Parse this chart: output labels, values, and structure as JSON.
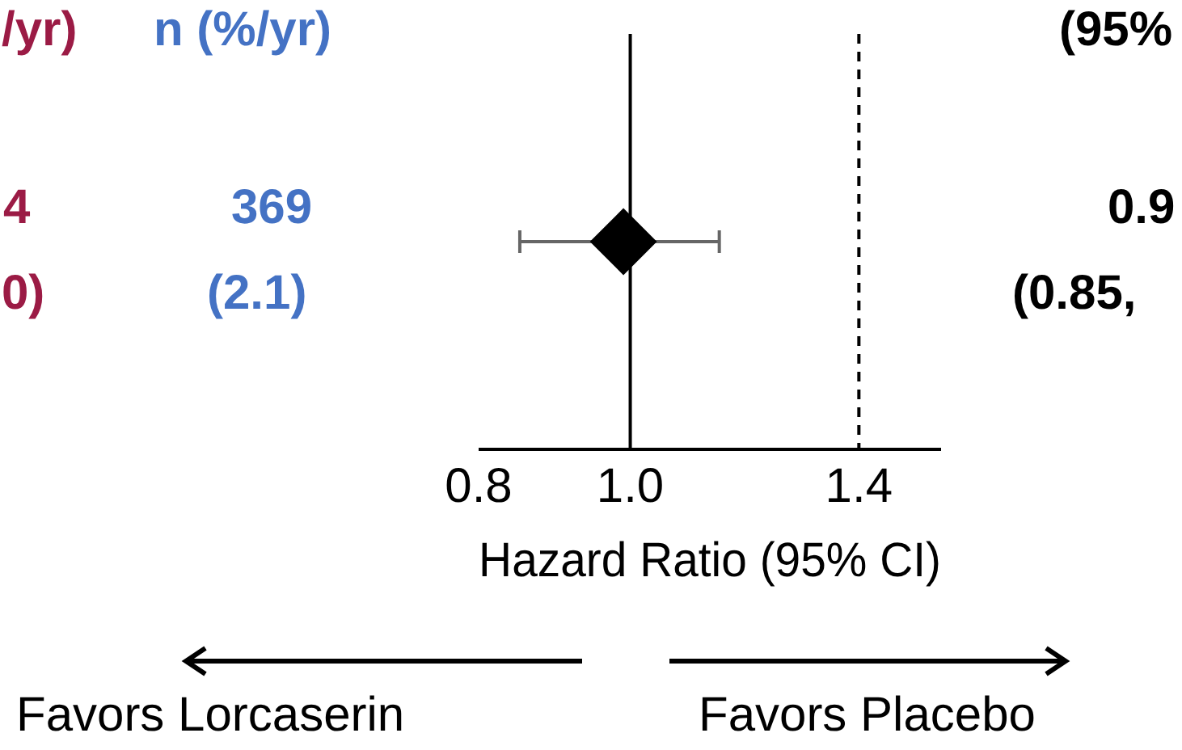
{
  "chart_data": {
    "type": "scatter",
    "orientation": "horizontal",
    "categories": [
      null
    ],
    "values": [
      0.99
    ],
    "errors": [
      [
        0.85,
        1.14
      ]
    ],
    "color": "#000000",
    "marker": "diamond",
    "xlim": [
      0.8,
      1.58
    ],
    "xticks": [
      0.8,
      {
        "value": 1,
        "label": "1.0"
      },
      1.4
    ],
    "log": "x",
    "grid": false,
    "legend": false,
    "tick_labels": "x",
    "xlabel": "Hazard Ratio (95% CI)",
    "ref_lines": [
      {
        "axis": "x",
        "value": 1,
        "line_style": "solid"
      },
      {
        "axis": "x",
        "value": 1.4,
        "line_style": "dashed"
      }
    ],
    "annotations": [
      "/yr)",
      "n (%/yr)",
      "(95%",
      "4",
      "369",
      "0.9",
      "0)",
      "(2.1)",
      "(0.85,",
      "Favors Lorcaserin",
      "Favors Placebo"
    ]
  }
}
